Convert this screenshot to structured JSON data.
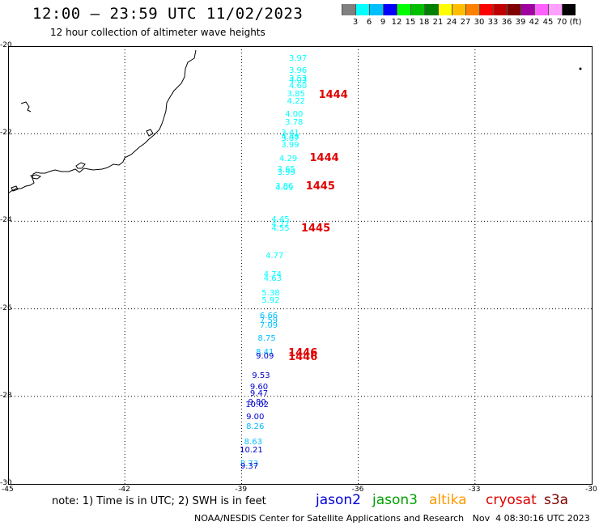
{
  "header": {
    "title": "12:00 – 23:59 UTC 11/02/2023",
    "subtitle": "12 hour collection of altimeter wave heights"
  },
  "colorbar": {
    "colors": [
      "#808080",
      "#00ffff",
      "#00bfff",
      "#0000ff",
      "#00ff00",
      "#00c000",
      "#008000",
      "#ffff00",
      "#ffbf00",
      "#ff8000",
      "#ff0000",
      "#c00000",
      "#800000",
      "#a000a0",
      "#ff60ff",
      "#ffa0ff",
      "#000000"
    ],
    "labels": [
      "3",
      "6",
      "9",
      "12",
      "15",
      "18",
      "21",
      "24",
      "27",
      "30",
      "33",
      "36",
      "39",
      "42",
      "45",
      "70",
      "(ft)"
    ]
  },
  "map": {
    "lon_ticks": [
      "-45",
      "-42",
      "-39",
      "-36",
      "-33",
      "-30"
    ],
    "lat_ticks": [
      "-20",
      "-22",
      "-24",
      "-26",
      "-28",
      "-30"
    ],
    "lon_range": [
      -45,
      -30
    ],
    "lat_range": [
      -30,
      -20
    ],
    "grid": "dotted",
    "coastline": "Brazil (Rio de Janeiro coast)"
  },
  "chart_data": {
    "type": "scatter",
    "title": "12:00 – 23:59 UTC 11/02/2023",
    "subtitle": "12 hour collection of altimeter wave heights",
    "xlabel": "",
    "ylabel": "",
    "xlim": [
      -45,
      -30
    ],
    "ylim": [
      -30,
      -20
    ],
    "series": [
      {
        "name": "cryosat",
        "values_ft": [
          {
            "lat": -20.3,
            "lon": -37.55,
            "swh": "3.97"
          },
          {
            "lat": -20.58,
            "lon": -37.55,
            "swh": "3.96"
          },
          {
            "lat": -20.75,
            "lon": -37.55,
            "swh": "3.53"
          },
          {
            "lat": -20.8,
            "lon": -37.55,
            "swh": "4.03"
          },
          {
            "lat": -20.92,
            "lon": -37.55,
            "swh": "4.60"
          },
          {
            "lat": -21.1,
            "lon": -37.6,
            "swh": "3.85"
          },
          {
            "lat": -21.28,
            "lon": -37.6,
            "swh": "4.22"
          },
          {
            "lat": -21.58,
            "lon": -37.65,
            "swh": "4.00"
          },
          {
            "lat": -21.75,
            "lon": -37.65,
            "swh": "3.78"
          },
          {
            "lat": -22.0,
            "lon": -37.75,
            "swh": "3.41"
          },
          {
            "lat": -22.08,
            "lon": -37.75,
            "swh": "4.48"
          },
          {
            "lat": -22.13,
            "lon": -37.75,
            "swh": "3.87"
          },
          {
            "lat": -22.28,
            "lon": -37.75,
            "swh": "3.99"
          },
          {
            "lat": -22.58,
            "lon": -37.8,
            "swh": "4.29"
          },
          {
            "lat": -22.82,
            "lon": -37.85,
            "swh": "3.65"
          },
          {
            "lat": -22.9,
            "lon": -37.85,
            "swh": "3.99"
          },
          {
            "lat": -23.21,
            "lon": -37.9,
            "swh": "3.86"
          },
          {
            "lat": -23.26,
            "lon": -37.9,
            "swh": "4.09"
          },
          {
            "lat": -23.97,
            "lon": -38.0,
            "swh": "4.45"
          },
          {
            "lat": -24.09,
            "lon": -38.0,
            "swh": "4.77"
          },
          {
            "lat": -24.18,
            "lon": -38.0,
            "swh": "4.55"
          },
          {
            "lat": -24.8,
            "lon": -38.15,
            "swh": "4.77"
          },
          {
            "lat": -25.23,
            "lon": -38.2,
            "swh": "4.74"
          },
          {
            "lat": -25.33,
            "lon": -38.2,
            "swh": "4.63"
          },
          {
            "lat": -25.65,
            "lon": -38.25,
            "swh": "5.38"
          },
          {
            "lat": -25.83,
            "lon": -38.25,
            "swh": "5.92"
          },
          {
            "lat": -26.18,
            "lon": -38.3,
            "swh": "6.66"
          },
          {
            "lat": -26.28,
            "lon": -38.3,
            "swh": "7.59"
          },
          {
            "lat": -26.4,
            "lon": -38.3,
            "swh": "7.09"
          },
          {
            "lat": -26.7,
            "lon": -38.35,
            "swh": "8.75"
          },
          {
            "lat": -27.0,
            "lon": -38.4,
            "swh": "8.41"
          },
          {
            "lat": -27.1,
            "lon": -38.4,
            "swh": "9.09"
          },
          {
            "lat": -27.55,
            "lon": -38.5,
            "swh": "9.53"
          },
          {
            "lat": -27.8,
            "lon": -38.55,
            "swh": "9.60"
          },
          {
            "lat": -27.95,
            "lon": -38.55,
            "swh": "9.47"
          },
          {
            "lat": -28.15,
            "lon": -38.6,
            "swh": "9.80"
          },
          {
            "lat": -28.2,
            "lon": -38.6,
            "swh": "10.02"
          },
          {
            "lat": -28.48,
            "lon": -38.65,
            "swh": "9.00"
          },
          {
            "lat": -28.7,
            "lon": -38.65,
            "swh": "8.26"
          },
          {
            "lat": -29.05,
            "lon": -38.7,
            "swh": "8.63"
          },
          {
            "lat": -29.25,
            "lon": -38.75,
            "swh": "10.21"
          },
          {
            "lat": -29.55,
            "lon": -38.8,
            "swh": "8.73"
          },
          {
            "lat": -29.62,
            "lon": -38.8,
            "swh": "9.37"
          }
        ],
        "pass_labels": [
          {
            "lat": -21.1,
            "lon": -37.02,
            "text": "1444"
          },
          {
            "lat": -22.55,
            "lon": -37.25,
            "text": "1444"
          },
          {
            "lat": -23.2,
            "lon": -37.35,
            "text": "1445"
          },
          {
            "lat": -24.15,
            "lon": -37.47,
            "text": "1445"
          },
          {
            "lat": -27.0,
            "lon": -37.8,
            "text": "1446"
          },
          {
            "lat": -27.1,
            "lon": -37.8,
            "text": "1446"
          }
        ]
      }
    ]
  },
  "footer": {
    "note": "note: 1) Time is in UTC; 2) SWH is in feet",
    "satellites": [
      {
        "label": "jason2",
        "color": "#0000dd"
      },
      {
        "label": "jason3",
        "color": "#00a000"
      },
      {
        "label": "altika",
        "color": "#ff9900"
      },
      {
        "label": "cryosat",
        "color": "#dd0000"
      },
      {
        "label": "s3a",
        "color": "#800000"
      }
    ],
    "credit": "NOAA/NESDIS Center for Satellite Applications and Research   Nov  4 08:30:16 UTC 2023"
  }
}
